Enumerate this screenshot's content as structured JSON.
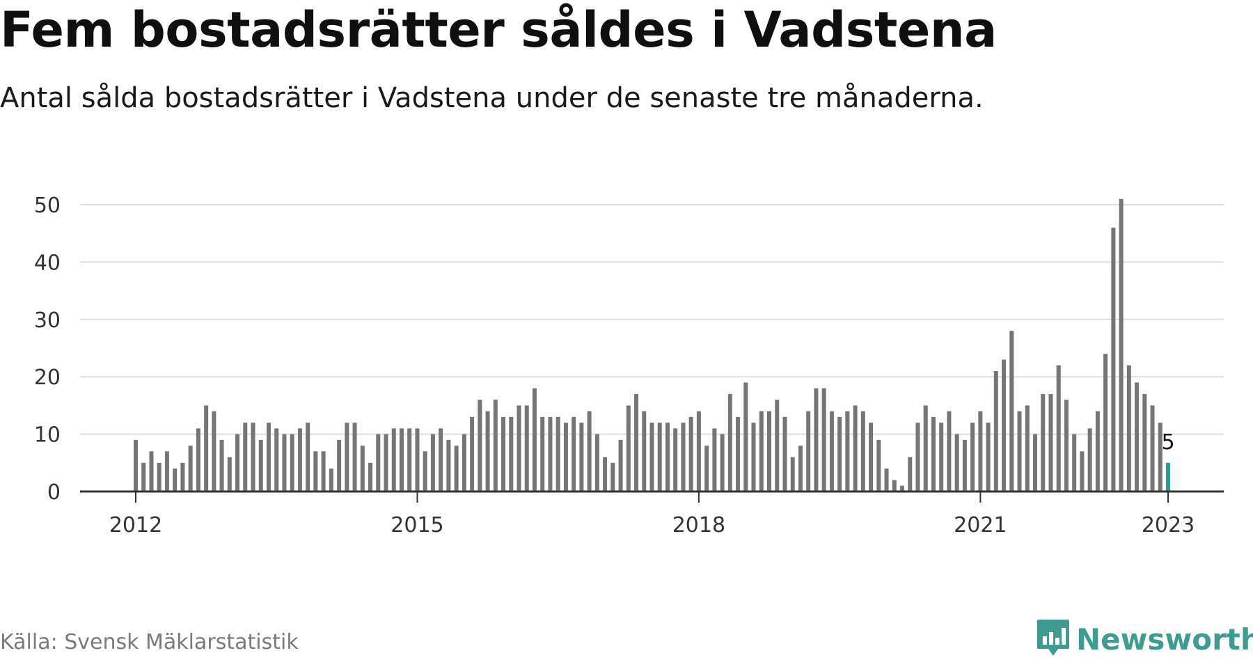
{
  "header": {
    "title": "Fem bostadsrätter såldes i Vadstena",
    "subtitle": "Antal sålda bostadsrätter i Vadstena under de senaste tre månaderna."
  },
  "footer": {
    "source": "Källa: Svensk Mäklarstatistik",
    "brand": "Newsworthy",
    "brand_icon": "bar-chart-speech-bubble-icon"
  },
  "colors": {
    "bar": "#757575",
    "highlight": "#2a9d8f",
    "grid": "#dddddd",
    "axis": "#333333",
    "brand": "#3f9a92"
  },
  "chart_data": {
    "type": "bar",
    "x_start": "2012-01",
    "interval": "month",
    "values": [
      9,
      5,
      7,
      5,
      7,
      4,
      5,
      8,
      11,
      15,
      14,
      9,
      6,
      10,
      12,
      12,
      9,
      12,
      11,
      10,
      10,
      11,
      12,
      7,
      7,
      4,
      9,
      12,
      12,
      8,
      5,
      10,
      10,
      11,
      11,
      11,
      11,
      7,
      10,
      11,
      9,
      8,
      10,
      13,
      16,
      14,
      16,
      13,
      13,
      15,
      15,
      18,
      13,
      13,
      13,
      12,
      13,
      12,
      14,
      10,
      6,
      5,
      9,
      15,
      17,
      14,
      12,
      12,
      12,
      11,
      12,
      13,
      14,
      8,
      11,
      10,
      17,
      13,
      19,
      12,
      14,
      14,
      16,
      13,
      6,
      8,
      14,
      18,
      18,
      14,
      13,
      14,
      15,
      14,
      12,
      9,
      4,
      2,
      1,
      6,
      12,
      15,
      13,
      12,
      14,
      10,
      9,
      12,
      14,
      12,
      21,
      23,
      28,
      14,
      15,
      10,
      17,
      17,
      22,
      16,
      10,
      7,
      11,
      14,
      24,
      46,
      51,
      22,
      19,
      17,
      15,
      12,
      5
    ],
    "highlight_last": true,
    "last_value_label": "5",
    "x_ticks": [
      "2012",
      "2015",
      "2018",
      "2021",
      "2023"
    ],
    "y_ticks": [
      0,
      10,
      20,
      30,
      40,
      50
    ],
    "ylim": [
      0,
      50
    ],
    "grid": true
  }
}
